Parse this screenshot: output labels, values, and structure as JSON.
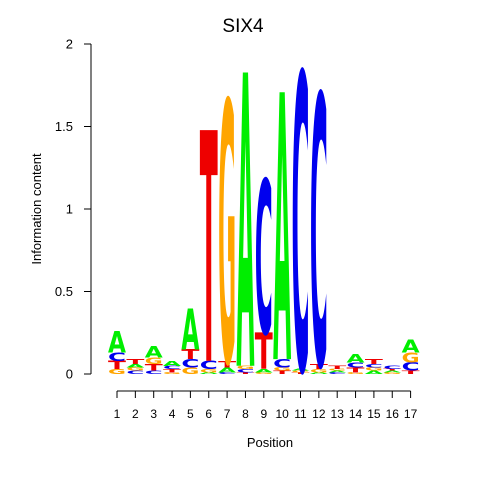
{
  "chart_data": {
    "type": "sequence-logo",
    "title": "SIX4",
    "xlabel": "Position",
    "ylabel": "Information content",
    "ylim": [
      0,
      2
    ],
    "yticks": [
      {
        "value": 0,
        "label": "0"
      },
      {
        "value": 0.5,
        "label": "0.5"
      },
      {
        "value": 1,
        "label": "1"
      },
      {
        "value": 1.5,
        "label": "1.5"
      },
      {
        "value": 2,
        "label": "2"
      }
    ],
    "positions": [
      "1",
      "2",
      "3",
      "4",
      "5",
      "6",
      "7",
      "8",
      "9",
      "10",
      "11",
      "12",
      "13",
      "14",
      "15",
      "16",
      "17"
    ],
    "letter_colors": {
      "A": "#00ee00",
      "C": "#0000ee",
      "G": "#ffa500",
      "T": "#ee0000"
    },
    "stacks": [
      [
        {
          "l": "G",
          "h": 0.03
        },
        {
          "l": "T",
          "h": 0.05
        },
        {
          "l": "C",
          "h": 0.05
        },
        {
          "l": "A",
          "h": 0.13
        }
      ],
      [
        {
          "l": "C",
          "h": 0.02
        },
        {
          "l": "G",
          "h": 0.02
        },
        {
          "l": "A",
          "h": 0.02
        },
        {
          "l": "T",
          "h": 0.03
        }
      ],
      [
        {
          "l": "C",
          "h": 0.02
        },
        {
          "l": "T",
          "h": 0.04
        },
        {
          "l": "G",
          "h": 0.04
        },
        {
          "l": "A",
          "h": 0.07
        }
      ],
      [
        {
          "l": "G",
          "h": 0.01
        },
        {
          "l": "T",
          "h": 0.02
        },
        {
          "l": "C",
          "h": 0.02
        },
        {
          "l": "A",
          "h": 0.03
        }
      ],
      [
        {
          "l": "G",
          "h": 0.04
        },
        {
          "l": "C",
          "h": 0.05
        },
        {
          "l": "T",
          "h": 0.06
        },
        {
          "l": "A",
          "h": 0.25
        }
      ],
      [
        {
          "l": "A",
          "h": 0.01
        },
        {
          "l": "G",
          "h": 0.02
        },
        {
          "l": "C",
          "h": 0.05
        },
        {
          "l": "T",
          "h": 1.4
        }
      ],
      [
        {
          "l": "C",
          "h": 0.01
        },
        {
          "l": "A",
          "h": 0.03
        },
        {
          "l": "T",
          "h": 0.04
        },
        {
          "l": "G",
          "h": 1.58
        }
      ],
      [
        {
          "l": "T",
          "h": 0.01
        },
        {
          "l": "C",
          "h": 0.02
        },
        {
          "l": "G",
          "h": 0.02
        },
        {
          "l": "A",
          "h": 1.78
        }
      ],
      [
        {
          "l": "G",
          "h": 0.01
        },
        {
          "l": "A",
          "h": 0.02
        },
        {
          "l": "T",
          "h": 0.22
        },
        {
          "l": "C",
          "h": 0.93
        }
      ],
      [
        {
          "l": "T",
          "h": 0.02
        },
        {
          "l": "G",
          "h": 0.02
        },
        {
          "l": "C",
          "h": 0.05
        },
        {
          "l": "A",
          "h": 1.62
        }
      ],
      [
        {
          "l": "T",
          "h": 0.01
        },
        {
          "l": "G",
          "h": 0.01
        },
        {
          "l": "A",
          "h": 0.01
        },
        {
          "l": "C",
          "h": 1.8
        }
      ],
      [
        {
          "l": "A",
          "h": 0.01
        },
        {
          "l": "G",
          "h": 0.02
        },
        {
          "l": "T",
          "h": 0.03
        },
        {
          "l": "C",
          "h": 1.64
        }
      ],
      [
        {
          "l": "C",
          "h": 0.01
        },
        {
          "l": "A",
          "h": 0.01
        },
        {
          "l": "G",
          "h": 0.01
        },
        {
          "l": "T",
          "h": 0.02
        }
      ],
      [
        {
          "l": "G",
          "h": 0.01
        },
        {
          "l": "T",
          "h": 0.03
        },
        {
          "l": "C",
          "h": 0.03
        },
        {
          "l": "A",
          "h": 0.05
        }
      ],
      [
        {
          "l": "A",
          "h": 0.02
        },
        {
          "l": "G",
          "h": 0.02
        },
        {
          "l": "C",
          "h": 0.02
        },
        {
          "l": "T",
          "h": 0.03
        }
      ],
      [
        {
          "l": "G",
          "h": 0.01
        },
        {
          "l": "A",
          "h": 0.01
        },
        {
          "l": "T",
          "h": 0.01
        },
        {
          "l": "C",
          "h": 0.02
        }
      ],
      [
        {
          "l": "T",
          "h": 0.02
        },
        {
          "l": "C",
          "h": 0.05
        },
        {
          "l": "G",
          "h": 0.06
        },
        {
          "l": "A",
          "h": 0.08
        }
      ]
    ]
  }
}
